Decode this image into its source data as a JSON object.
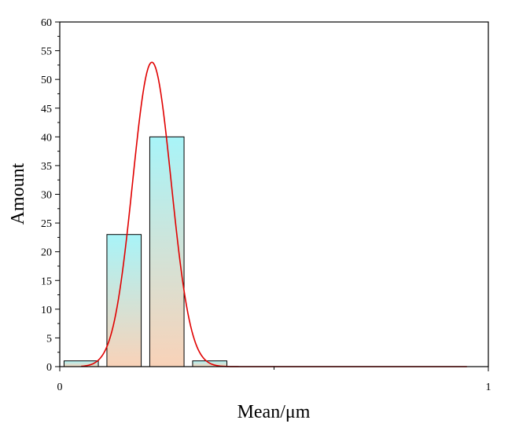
{
  "chart_data": {
    "type": "bar",
    "x": [
      0.05,
      0.15,
      0.25,
      0.35
    ],
    "values": [
      1,
      23,
      40,
      1
    ],
    "bin_width": 0.08,
    "fit_curve": {
      "type": "line",
      "distribution": "gaussian",
      "peak": 53,
      "mean": 0.215,
      "sigma": 0.045,
      "x_range": [
        0.05,
        0.95
      ],
      "color": "#e00000"
    },
    "xlabel": "Mean/μm",
    "ylabel": "Amount",
    "xlim": [
      0,
      1
    ],
    "ylim": [
      0,
      60
    ],
    "x_ticks": [
      "0",
      "1"
    ],
    "y_ticks": [
      "0",
      "5",
      "10",
      "15",
      "20",
      "25",
      "30",
      "35",
      "40",
      "45",
      "50",
      "55",
      "60"
    ],
    "grid": false,
    "bar_gradient": [
      "#a8f4f8",
      "#f9d2b8"
    ]
  }
}
